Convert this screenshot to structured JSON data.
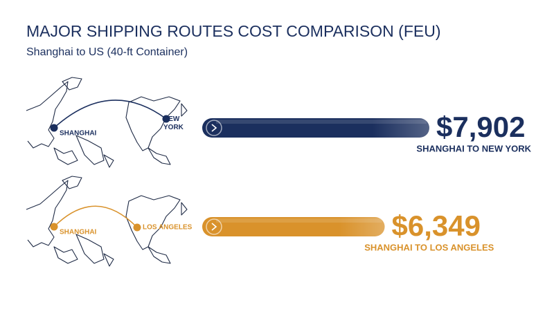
{
  "chart_data": {
    "type": "bar",
    "title": "MAJOR SHIPPING ROUTES COST COMPARISON (FEU)",
    "subtitle": "Shanghai to US (40-ft Container)",
    "categories": [
      "SHANGHAI TO NEW YORK",
      "SHANGHAI TO LOS ANGELES"
    ],
    "values": [
      7902,
      6349
    ],
    "value_labels": [
      "$7,902",
      "$6,349"
    ],
    "colors": [
      "#1b2f5e",
      "#d9922b"
    ],
    "route_maps": [
      {
        "origin": "SHANGHAI",
        "destination": "NEW YORK"
      },
      {
        "origin": "SHANGHAI",
        "destination": "LOS ANGELES"
      }
    ]
  }
}
